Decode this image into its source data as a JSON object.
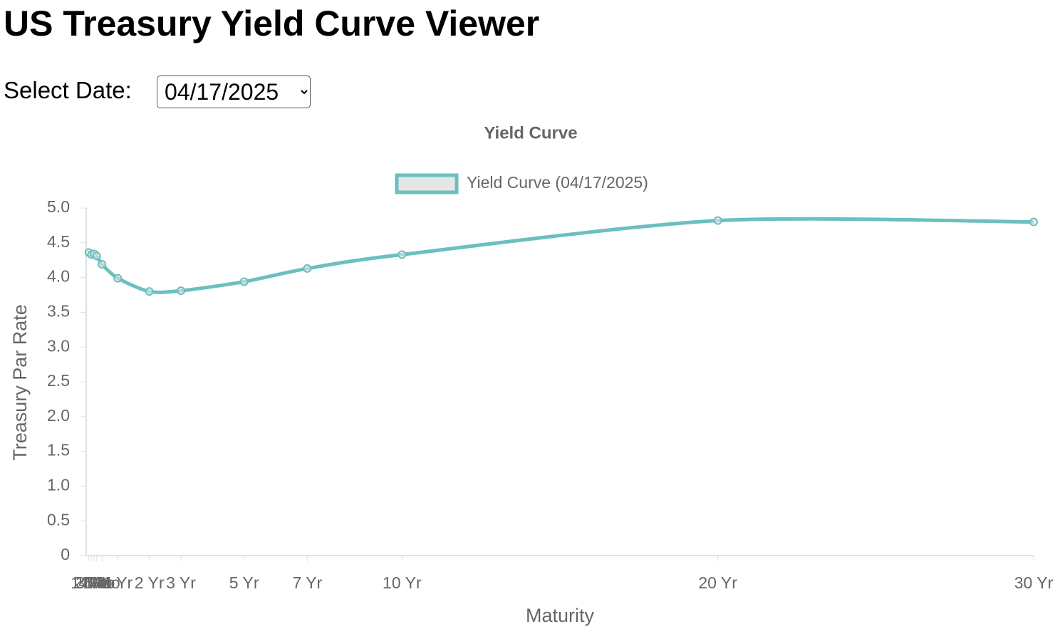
{
  "page": {
    "title": "US Treasury Yield Curve Viewer",
    "select_label": "Select Date:",
    "selected_date": "04/17/2025"
  },
  "chart_data": {
    "type": "line",
    "title": "Yield Curve",
    "x_label": "Maturity",
    "y_label": "Treasury Par Rate",
    "x": [
      0.0833,
      0.1667,
      0.25,
      0.3333,
      0.5,
      1,
      2,
      3,
      5,
      7,
      10,
      20,
      30
    ],
    "series": [
      {
        "name": "Yield Curve (04/17/2025)",
        "color": "#6cbfbf",
        "values": [
          4.36,
          4.33,
          4.34,
          4.31,
          4.19,
          3.99,
          3.8,
          3.81,
          3.94,
          4.13,
          4.33,
          4.82,
          4.8
        ]
      }
    ],
    "xlim": [
      0,
      30
    ],
    "xticks": [
      {
        "value": 0.0833,
        "label": "1 Mo"
      },
      {
        "value": 0.1667,
        "label": "2 Mo"
      },
      {
        "value": 0.25,
        "label": "3 Mo"
      },
      {
        "value": 0.3333,
        "label": "4 Mo"
      },
      {
        "value": 0.5,
        "label": "6 Mo"
      },
      {
        "value": 1,
        "label": "1 Yr"
      },
      {
        "value": 2,
        "label": "2 Yr"
      },
      {
        "value": 3,
        "label": "3 Yr"
      },
      {
        "value": 5,
        "label": "5 Yr"
      },
      {
        "value": 7,
        "label": "7 Yr"
      },
      {
        "value": 10,
        "label": "10 Yr"
      },
      {
        "value": 20,
        "label": "20 Yr"
      },
      {
        "value": 30,
        "label": "30 Yr"
      }
    ],
    "ylim": [
      0,
      5
    ],
    "yticks": [
      0,
      {
        "value": 0.5,
        "label": "0.5"
      },
      {
        "value": 1,
        "label": "1.0"
      },
      1.5,
      {
        "value": 2,
        "label": "2.0"
      },
      2.5,
      {
        "value": 3,
        "label": "3.0"
      },
      3.5,
      {
        "value": 4,
        "label": "4.0"
      },
      4.5,
      {
        "value": 5,
        "label": "5.0"
      }
    ],
    "grid": false,
    "legend": "top"
  }
}
